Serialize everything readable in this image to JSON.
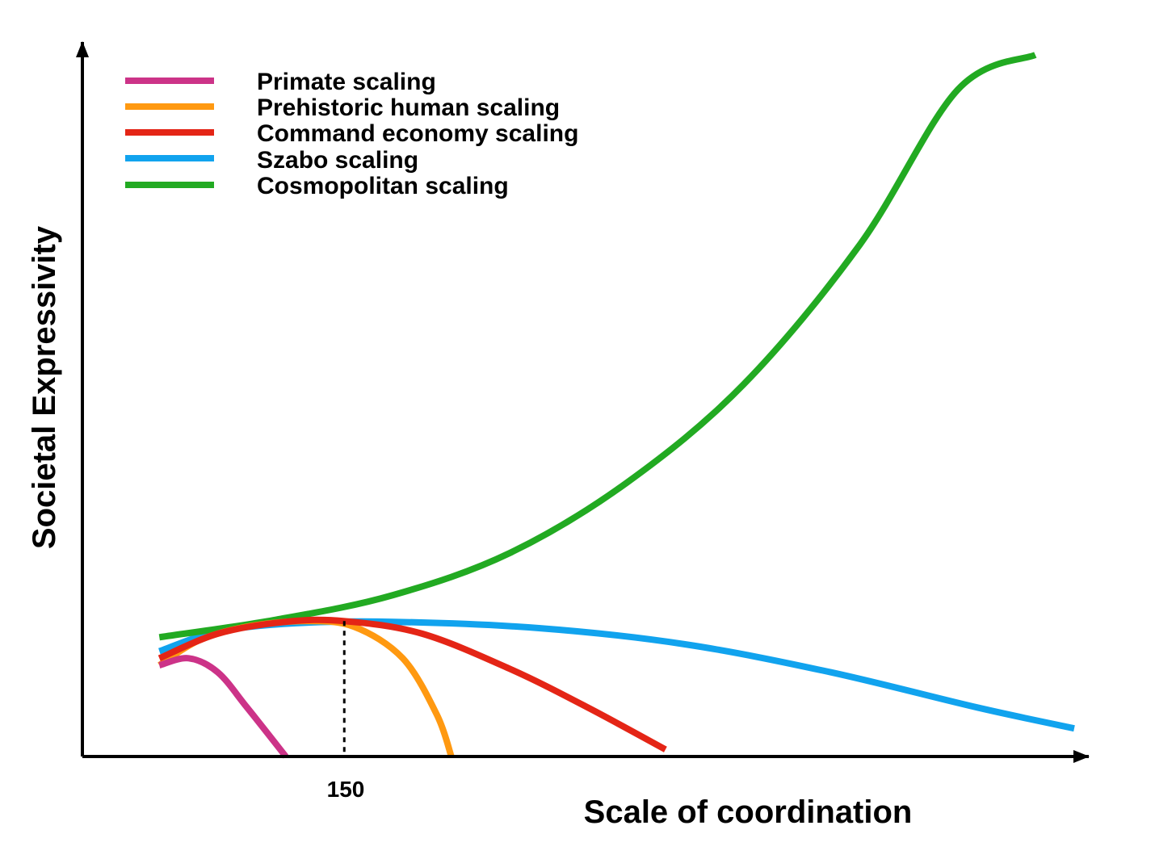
{
  "chart_data": {
    "type": "line",
    "title": "",
    "xlabel": "Scale of coordination",
    "ylabel": "Societal Expressivity",
    "x_tick_labels": [
      "150"
    ],
    "xlim": [
      0,
      100
    ],
    "ylim": [
      0,
      100
    ],
    "marker": {
      "x": 25,
      "y": 19.3,
      "label": "150",
      "style": "dashed"
    },
    "series": [
      {
        "name": "Primate scaling",
        "color": "#CC3388",
        "points": [
          [
            6,
            13
          ],
          [
            9,
            14
          ],
          [
            12,
            12
          ],
          [
            15,
            7
          ],
          [
            19,
            0
          ]
        ]
      },
      {
        "name": "Prehistoric human scaling",
        "color": "#FF9911",
        "points": [
          [
            6,
            13
          ],
          [
            10,
            16.5
          ],
          [
            15,
            18.5
          ],
          [
            21,
            19.3
          ],
          [
            26,
            18.5
          ],
          [
            31,
            14
          ],
          [
            34.5,
            6
          ],
          [
            36,
            0
          ]
        ]
      },
      {
        "name": "Command economy scaling",
        "color": "#E42516",
        "points": [
          [
            6,
            14
          ],
          [
            12,
            17.5
          ],
          [
            19,
            19.2
          ],
          [
            25,
            19.3
          ],
          [
            33,
            17.5
          ],
          [
            42,
            12.5
          ],
          [
            50,
            7
          ],
          [
            58,
            1
          ]
        ]
      },
      {
        "name": "Szabo scaling",
        "color": "#11A3EE",
        "points": [
          [
            6,
            15
          ],
          [
            12,
            17.8
          ],
          [
            20,
            19
          ],
          [
            30,
            19.2
          ],
          [
            45,
            18.3
          ],
          [
            60,
            16
          ],
          [
            75,
            12
          ],
          [
            90,
            7
          ],
          [
            100,
            4
          ]
        ]
      },
      {
        "name": "Cosmopolitan scaling",
        "color": "#22AA22",
        "points": [
          [
            6,
            17
          ],
          [
            18,
            19.5
          ],
          [
            30,
            23
          ],
          [
            42,
            29
          ],
          [
            54,
            39
          ],
          [
            66,
            53
          ],
          [
            78,
            73
          ],
          [
            88,
            95
          ],
          [
            96,
            100
          ]
        ]
      }
    ]
  }
}
